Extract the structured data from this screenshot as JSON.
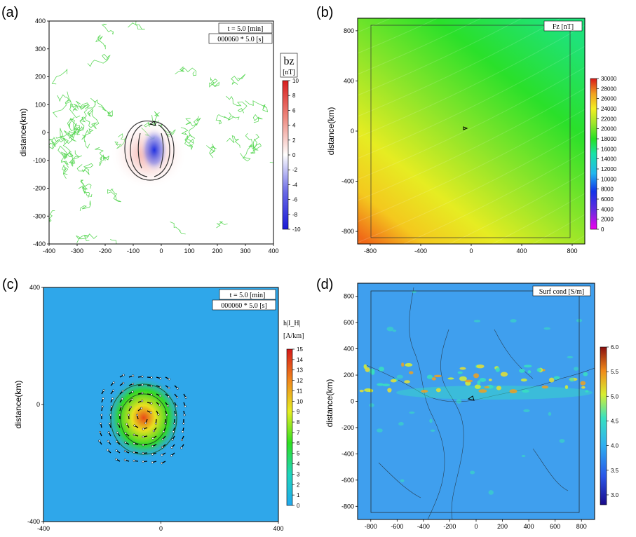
{
  "chart_data": [
    {
      "panel": "(a)",
      "type": "heatmap",
      "ylabel": "distance(km)",
      "xlim": [
        -400,
        400
      ],
      "ylim": [
        -400,
        400
      ],
      "xticks": [
        "-400",
        "-300",
        "-200",
        "-100",
        "0",
        "100",
        "200",
        "300",
        "400"
      ],
      "yticks": [
        "400",
        "300",
        "200",
        "100",
        "0",
        "-100",
        "-200",
        "-300",
        "-400"
      ],
      "info": [
        "t = 5.0 [min]",
        "000060 * 5.0 [s]"
      ],
      "colorbar": {
        "title": "bz",
        "unit": "[nT]",
        "min": -10,
        "max": 10,
        "ticks": [
          "10",
          "8",
          "6",
          "4",
          "2",
          "0",
          "-2",
          "-4",
          "-6",
          "-8",
          "-10"
        ]
      },
      "colors": {
        "positive": "#e8403a",
        "negative": "#1f2fd8",
        "contour": "#5ed85a"
      }
    },
    {
      "panel": "(b)",
      "type": "heatmap",
      "ylabel": "distance(km)",
      "xlim": [
        -900,
        900
      ],
      "ylim": [
        -900,
        900
      ],
      "xticks": [
        "-800",
        "-400",
        "0",
        "400",
        "800"
      ],
      "yticks": [
        "800",
        "400",
        "0",
        "-400",
        "-800"
      ],
      "info": [
        "Fz [nT]"
      ],
      "colorbar": {
        "title": "",
        "unit": "",
        "min": 0,
        "max": 30000,
        "ticks": [
          "30000",
          "28000",
          "26000",
          "24000",
          "22000",
          "20000",
          "18000",
          "16000",
          "14000",
          "12000",
          "10000",
          "8000",
          "6000",
          "4000",
          "2000",
          "0"
        ]
      }
    },
    {
      "panel": "(c)",
      "type": "heatmap",
      "ylabel": "distance(km)",
      "xlim": [
        -400,
        400
      ],
      "ylim": [
        -400,
        400
      ],
      "xticks": [
        "-400",
        "0",
        "400"
      ],
      "yticks": [
        "400",
        "0",
        "-400"
      ],
      "info": [
        "t = 5.0 [min]",
        "000060 * 5.0 [s]"
      ],
      "colorbar": {
        "title": "h|I_H|",
        "unit": "[A/km]",
        "min": 0,
        "max": 15,
        "ticks": [
          "15",
          "14",
          "13",
          "12",
          "11",
          "10",
          "9",
          "8",
          "7",
          "6",
          "5",
          "4",
          "3",
          "2",
          "1",
          "0"
        ]
      },
      "colors": {
        "background": "#2fa7ea"
      }
    },
    {
      "panel": "(d)",
      "type": "heatmap",
      "ylabel": "distance(km)",
      "xlim": [
        -900,
        900
      ],
      "ylim": [
        -900,
        900
      ],
      "xticks": [
        "-800",
        "-600",
        "-400",
        "-200",
        "0",
        "200",
        "400",
        "600",
        "800"
      ],
      "yticks": [
        "800",
        "600",
        "400",
        "200",
        "0",
        "-200",
        "-400",
        "-600",
        "-800"
      ],
      "info": [
        "Surf cond [S/m]"
      ],
      "colorbar": {
        "title": "",
        "unit": "",
        "min": 2.8,
        "max": 6.0,
        "ticks": [
          "6.0",
          "5.5",
          "5.0",
          "4.5",
          "4.0",
          "3.5",
          "3.0"
        ]
      },
      "colors": {
        "background": "#3f9fee"
      }
    }
  ]
}
